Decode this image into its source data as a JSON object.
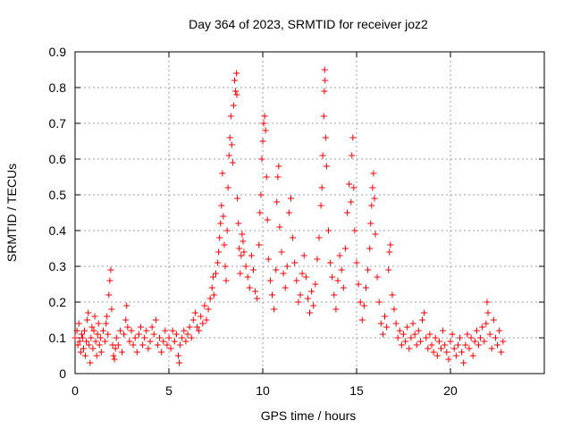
{
  "chart_data": {
    "type": "scatter",
    "title": "Day 364 of 2023, SRMTID for receiver joz2",
    "xlabel": "GPS time / hours",
    "ylabel": "SRMTID / TECUs",
    "xlim": [
      0,
      25
    ],
    "ylim": [
      0,
      0.9
    ],
    "x_ticks": [
      0,
      5,
      10,
      15,
      20
    ],
    "x_tick_labels": [
      "0",
      "5",
      "10",
      "15",
      "20"
    ],
    "y_ticks": [
      0,
      0.1,
      0.2,
      0.3,
      0.4,
      0.5,
      0.6,
      0.7,
      0.8,
      0.9
    ],
    "y_tick_labels": [
      "0",
      "0.1",
      "0.2",
      "0.3",
      "0.4",
      "0.5",
      "0.6",
      "0.7",
      "0.8",
      "0.9"
    ],
    "grid": true,
    "marker": "+",
    "color": "#ff0000",
    "series": [
      {
        "name": "joz2",
        "points": [
          [
            0.0,
            0.1
          ],
          [
            0.1,
            0.12
          ],
          [
            0.15,
            0.08
          ],
          [
            0.2,
            0.14
          ],
          [
            0.25,
            0.09
          ],
          [
            0.3,
            0.06
          ],
          [
            0.35,
            0.11
          ],
          [
            0.4,
            0.1
          ],
          [
            0.45,
            0.07
          ],
          [
            0.5,
            0.12
          ],
          [
            0.55,
            0.05
          ],
          [
            0.6,
            0.09
          ],
          [
            0.65,
            0.15
          ],
          [
            0.7,
            0.17
          ],
          [
            0.75,
            0.08
          ],
          [
            0.8,
            0.03
          ],
          [
            0.85,
            0.1
          ],
          [
            0.9,
            0.13
          ],
          [
            0.95,
            0.07
          ],
          [
            1.0,
            0.12
          ],
          [
            1.05,
            0.16
          ],
          [
            1.1,
            0.09
          ],
          [
            1.15,
            0.05
          ],
          [
            1.2,
            0.11
          ],
          [
            1.25,
            0.14
          ],
          [
            1.3,
            0.08
          ],
          [
            1.35,
            0.1
          ],
          [
            1.4,
            0.06
          ],
          [
            1.5,
            0.12
          ],
          [
            1.6,
            0.09
          ],
          [
            1.65,
            0.14
          ],
          [
            1.7,
            0.16
          ],
          [
            1.75,
            0.11
          ],
          [
            1.8,
            0.22
          ],
          [
            1.85,
            0.26
          ],
          [
            1.9,
            0.29
          ],
          [
            1.95,
            0.18
          ],
          [
            2.0,
            0.08
          ],
          [
            2.05,
            0.05
          ],
          [
            2.1,
            0.04
          ],
          [
            2.15,
            0.07
          ],
          [
            2.2,
            0.1
          ],
          [
            2.3,
            0.08
          ],
          [
            2.4,
            0.12
          ],
          [
            2.5,
            0.06
          ],
          [
            2.6,
            0.11
          ],
          [
            2.7,
            0.15
          ],
          [
            2.75,
            0.19
          ],
          [
            2.8,
            0.13
          ],
          [
            2.9,
            0.09
          ],
          [
            3.0,
            0.12
          ],
          [
            3.1,
            0.08
          ],
          [
            3.2,
            0.1
          ],
          [
            3.3,
            0.06
          ],
          [
            3.4,
            0.11
          ],
          [
            3.5,
            0.13
          ],
          [
            3.6,
            0.08
          ],
          [
            3.7,
            0.1
          ],
          [
            3.8,
            0.12
          ],
          [
            3.9,
            0.07
          ],
          [
            4.0,
            0.09
          ],
          [
            4.1,
            0.13
          ],
          [
            4.2,
            0.11
          ],
          [
            4.3,
            0.15
          ],
          [
            4.4,
            0.08
          ],
          [
            4.5,
            0.1
          ],
          [
            4.6,
            0.06
          ],
          [
            4.7,
            0.09
          ],
          [
            4.8,
            0.12
          ],
          [
            4.9,
            0.08
          ],
          [
            5.0,
            0.1
          ],
          [
            5.1,
            0.07
          ],
          [
            5.2,
            0.12
          ],
          [
            5.3,
            0.09
          ],
          [
            5.4,
            0.11
          ],
          [
            5.5,
            0.05
          ],
          [
            5.55,
            0.03
          ],
          [
            5.6,
            0.08
          ],
          [
            5.7,
            0.1
          ],
          [
            5.8,
            0.12
          ],
          [
            5.9,
            0.09
          ],
          [
            6.0,
            0.11
          ],
          [
            6.1,
            0.13
          ],
          [
            6.2,
            0.1
          ],
          [
            6.3,
            0.15
          ],
          [
            6.4,
            0.17
          ],
          [
            6.5,
            0.13
          ],
          [
            6.6,
            0.12
          ],
          [
            6.7,
            0.16
          ],
          [
            6.8,
            0.14
          ],
          [
            6.9,
            0.19
          ],
          [
            7.0,
            0.15
          ],
          [
            7.1,
            0.18
          ],
          [
            7.2,
            0.21
          ],
          [
            7.3,
            0.24
          ],
          [
            7.35,
            0.27
          ],
          [
            7.4,
            0.22
          ],
          [
            7.5,
            0.28
          ],
          [
            7.6,
            0.31
          ],
          [
            7.65,
            0.34
          ],
          [
            7.7,
            0.38
          ],
          [
            7.75,
            0.42
          ],
          [
            7.8,
            0.47
          ],
          [
            7.85,
            0.56
          ],
          [
            7.9,
            0.44
          ],
          [
            7.95,
            0.36
          ],
          [
            8.0,
            0.3
          ],
          [
            8.05,
            0.26
          ],
          [
            8.1,
            0.4
          ],
          [
            8.15,
            0.52
          ],
          [
            8.2,
            0.61
          ],
          [
            8.25,
            0.66
          ],
          [
            8.3,
            0.72
          ],
          [
            8.35,
            0.64
          ],
          [
            8.4,
            0.59
          ],
          [
            8.45,
            0.75
          ],
          [
            8.5,
            0.82
          ],
          [
            8.55,
            0.79
          ],
          [
            8.6,
            0.84
          ],
          [
            8.62,
            0.78
          ],
          [
            8.65,
            0.49
          ],
          [
            8.7,
            0.42
          ],
          [
            8.75,
            0.35
          ],
          [
            8.8,
            0.28
          ],
          [
            8.85,
            0.33
          ],
          [
            8.9,
            0.39
          ],
          [
            8.95,
            0.37
          ],
          [
            9.0,
            0.34
          ],
          [
            9.1,
            0.3
          ],
          [
            9.2,
            0.27
          ],
          [
            9.3,
            0.24
          ],
          [
            9.4,
            0.33
          ],
          [
            9.5,
            0.29
          ],
          [
            9.6,
            0.23
          ],
          [
            9.7,
            0.21
          ],
          [
            9.8,
            0.36
          ],
          [
            9.85,
            0.45
          ],
          [
            9.9,
            0.5
          ],
          [
            9.95,
            0.6
          ],
          [
            10.0,
            0.65
          ],
          [
            10.05,
            0.7
          ],
          [
            10.1,
            0.72
          ],
          [
            10.15,
            0.68
          ],
          [
            10.2,
            0.55
          ],
          [
            10.25,
            0.43
          ],
          [
            10.3,
            0.32
          ],
          [
            10.4,
            0.26
          ],
          [
            10.5,
            0.22
          ],
          [
            10.6,
            0.18
          ],
          [
            10.7,
            0.29
          ],
          [
            10.75,
            0.48
          ],
          [
            10.8,
            0.55
          ],
          [
            10.85,
            0.58
          ],
          [
            10.9,
            0.41
          ],
          [
            11.0,
            0.34
          ],
          [
            11.1,
            0.28
          ],
          [
            11.2,
            0.24
          ],
          [
            11.3,
            0.3
          ],
          [
            11.4,
            0.45
          ],
          [
            11.5,
            0.49
          ],
          [
            11.6,
            0.38
          ],
          [
            11.7,
            0.31
          ],
          [
            11.8,
            0.26
          ],
          [
            11.9,
            0.2
          ],
          [
            12.0,
            0.22
          ],
          [
            12.1,
            0.28
          ],
          [
            12.2,
            0.33
          ],
          [
            12.3,
            0.27
          ],
          [
            12.4,
            0.21
          ],
          [
            12.5,
            0.17
          ],
          [
            12.6,
            0.23
          ],
          [
            12.7,
            0.19
          ],
          [
            12.8,
            0.25
          ],
          [
            12.9,
            0.32
          ],
          [
            13.0,
            0.38
          ],
          [
            13.1,
            0.47
          ],
          [
            13.15,
            0.52
          ],
          [
            13.2,
            0.61
          ],
          [
            13.25,
            0.72
          ],
          [
            13.28,
            0.79
          ],
          [
            13.3,
            0.85
          ],
          [
            13.32,
            0.82
          ],
          [
            13.35,
            0.66
          ],
          [
            13.4,
            0.58
          ],
          [
            13.5,
            0.4
          ],
          [
            13.6,
            0.31
          ],
          [
            13.7,
            0.27
          ],
          [
            13.8,
            0.22
          ],
          [
            13.9,
            0.18
          ],
          [
            14.0,
            0.26
          ],
          [
            14.1,
            0.33
          ],
          [
            14.2,
            0.29
          ],
          [
            14.3,
            0.24
          ],
          [
            14.4,
            0.35
          ],
          [
            14.5,
            0.45
          ],
          [
            14.6,
            0.53
          ],
          [
            14.7,
            0.48
          ],
          [
            14.75,
            0.61
          ],
          [
            14.8,
            0.66
          ],
          [
            14.85,
            0.52
          ],
          [
            14.9,
            0.4
          ],
          [
            15.0,
            0.31
          ],
          [
            15.1,
            0.25
          ],
          [
            15.2,
            0.2
          ],
          [
            15.3,
            0.15
          ],
          [
            15.4,
            0.19
          ],
          [
            15.5,
            0.24
          ],
          [
            15.6,
            0.29
          ],
          [
            15.7,
            0.35
          ],
          [
            15.75,
            0.42
          ],
          [
            15.8,
            0.47
          ],
          [
            15.85,
            0.52
          ],
          [
            15.9,
            0.56
          ],
          [
            15.95,
            0.49
          ],
          [
            16.0,
            0.39
          ],
          [
            16.1,
            0.27
          ],
          [
            16.2,
            0.2
          ],
          [
            16.3,
            0.14
          ],
          [
            16.4,
            0.11
          ],
          [
            16.5,
            0.16
          ],
          [
            16.6,
            0.13
          ],
          [
            16.7,
            0.29
          ],
          [
            16.75,
            0.34
          ],
          [
            16.8,
            0.36
          ],
          [
            16.9,
            0.22
          ],
          [
            17.0,
            0.18
          ],
          [
            17.1,
            0.14
          ],
          [
            17.2,
            0.1
          ],
          [
            17.3,
            0.12
          ],
          [
            17.4,
            0.08
          ],
          [
            17.5,
            0.11
          ],
          [
            17.6,
            0.09
          ],
          [
            17.7,
            0.13
          ],
          [
            17.8,
            0.07
          ],
          [
            17.9,
            0.1
          ],
          [
            18.0,
            0.14
          ],
          [
            18.1,
            0.11
          ],
          [
            18.2,
            0.08
          ],
          [
            18.3,
            0.12
          ],
          [
            18.4,
            0.09
          ],
          [
            18.5,
            0.15
          ],
          [
            18.6,
            0.17
          ],
          [
            18.7,
            0.1
          ],
          [
            18.8,
            0.07
          ],
          [
            18.9,
            0.11
          ],
          [
            19.0,
            0.08
          ],
          [
            19.1,
            0.06
          ],
          [
            19.2,
            0.1
          ],
          [
            19.3,
            0.05
          ],
          [
            19.4,
            0.09
          ],
          [
            19.5,
            0.07
          ],
          [
            19.6,
            0.12
          ],
          [
            19.7,
            0.08
          ],
          [
            19.8,
            0.06
          ],
          [
            19.9,
            0.04
          ],
          [
            20.0,
            0.09
          ],
          [
            20.1,
            0.11
          ],
          [
            20.2,
            0.07
          ],
          [
            20.3,
            0.05
          ],
          [
            20.4,
            0.08
          ],
          [
            20.5,
            0.1
          ],
          [
            20.6,
            0.06
          ],
          [
            20.7,
            0.03
          ],
          [
            20.8,
            0.08
          ],
          [
            20.9,
            0.11
          ],
          [
            21.0,
            0.07
          ],
          [
            21.1,
            0.1
          ],
          [
            21.2,
            0.05
          ],
          [
            21.3,
            0.09
          ],
          [
            21.4,
            0.12
          ],
          [
            21.5,
            0.08
          ],
          [
            21.6,
            0.1
          ],
          [
            21.7,
            0.13
          ],
          [
            21.8,
            0.09
          ],
          [
            21.9,
            0.14
          ],
          [
            21.95,
            0.2
          ],
          [
            22.0,
            0.17
          ],
          [
            22.1,
            0.11
          ],
          [
            22.2,
            0.07
          ],
          [
            22.3,
            0.15
          ],
          [
            22.4,
            0.1
          ],
          [
            22.5,
            0.08
          ],
          [
            22.6,
            0.12
          ],
          [
            22.7,
            0.06
          ],
          [
            22.8,
            0.09
          ]
        ]
      }
    ]
  }
}
